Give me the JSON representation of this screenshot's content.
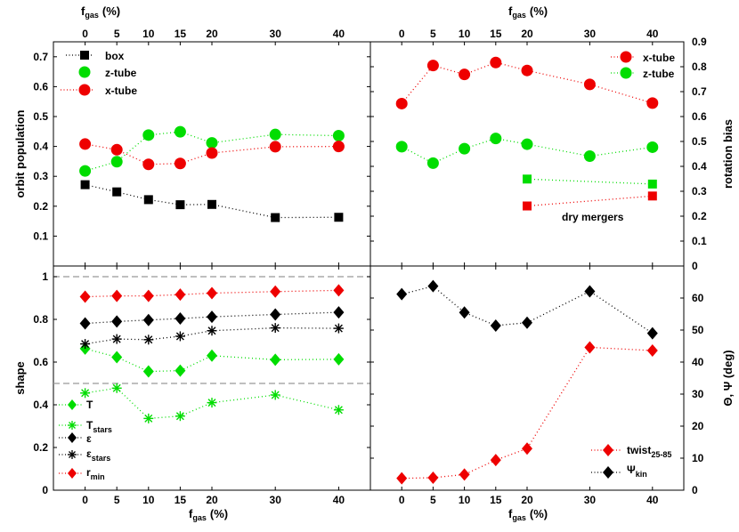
{
  "chart_data": [
    {
      "panel": "top-left",
      "type": "scatter",
      "top_xlabel": "f",
      "top_xlabel_sub": "gas",
      "top_xlabel_unit": "(%)",
      "x_ticks": [
        "0",
        "5",
        "10",
        "15",
        "20",
        "30",
        "40"
      ],
      "xlim": [
        -5,
        45
      ],
      "ylabel": "orbit population",
      "ylim": [
        0,
        0.75
      ],
      "y_ticks": [
        "0.1",
        "0.2",
        "0.3",
        "0.4",
        "0.5",
        "0.6",
        "0.7"
      ],
      "y_tick_values": [
        0.1,
        0.2,
        0.3,
        0.4,
        0.5,
        0.6,
        0.7
      ],
      "legend_position": "top-left",
      "series": [
        {
          "name": "box",
          "marker": "square",
          "color": "#000000",
          "x": [
            0,
            5,
            10,
            15,
            20,
            30,
            40
          ],
          "values": [
            0.272,
            0.248,
            0.222,
            0.205,
            0.206,
            0.162,
            0.163
          ]
        },
        {
          "name": "z-tube",
          "marker": "circle",
          "color": "#00dd00",
          "x": [
            0,
            5,
            10,
            15,
            20,
            30,
            40
          ],
          "values": [
            0.318,
            0.349,
            0.438,
            0.449,
            0.412,
            0.44,
            0.436
          ]
        },
        {
          "name": "x-tube",
          "marker": "circle",
          "color": "#ee0000",
          "x": [
            0,
            5,
            10,
            15,
            20,
            30,
            40
          ],
          "values": [
            0.408,
            0.389,
            0.34,
            0.343,
            0.378,
            0.399,
            0.4
          ]
        }
      ]
    },
    {
      "panel": "top-right",
      "type": "scatter",
      "top_xlabel": "f",
      "top_xlabel_sub": "gas",
      "top_xlabel_unit": "(%)",
      "x_ticks": [
        "0",
        "5",
        "10",
        "15",
        "20",
        "30",
        "40"
      ],
      "xlim": [
        -5,
        45
      ],
      "ylabel": "rotation bias",
      "ylim": [
        0,
        0.9
      ],
      "y_ticks": [
        "0",
        "0.1",
        "0.2",
        "0.3",
        "0.4",
        "0.5",
        "0.6",
        "0.7",
        "0.8",
        "0.9"
      ],
      "y_tick_values": [
        0,
        0.1,
        0.2,
        0.3,
        0.4,
        0.5,
        0.6,
        0.7,
        0.8,
        0.9
      ],
      "legend_position": "top-right",
      "annotation": "dry mergers",
      "series": [
        {
          "name": "x-tube",
          "marker": "circle",
          "color": "#ee0000",
          "x": [
            0,
            5,
            10,
            15,
            20,
            30,
            40
          ],
          "values": [
            0.652,
            0.805,
            0.769,
            0.817,
            0.785,
            0.729,
            0.654
          ]
        },
        {
          "name": "z-tube",
          "marker": "circle",
          "color": "#00dd00",
          "x": [
            0,
            5,
            10,
            15,
            20,
            30,
            40
          ],
          "values": [
            0.479,
            0.413,
            0.471,
            0.512,
            0.489,
            0.441,
            0.477
          ]
        },
        {
          "name": "z-tube dry mergers",
          "marker": "square",
          "color": "#00dd00",
          "x": [
            20,
            40
          ],
          "values": [
            0.349,
            0.329
          ]
        },
        {
          "name": "x-tube dry mergers",
          "marker": "square",
          "color": "#ee0000",
          "x": [
            20,
            40
          ],
          "values": [
            0.241,
            0.281
          ]
        }
      ]
    },
    {
      "panel": "bottom-left",
      "type": "scatter",
      "xlabel": "f",
      "xlabel_sub": "gas",
      "xlabel_unit": "(%)",
      "x_ticks": [
        "0",
        "5",
        "10",
        "15",
        "20",
        "30",
        "40"
      ],
      "xlim": [
        -5,
        45
      ],
      "ylabel": "shape",
      "ylim": [
        0,
        1.05
      ],
      "y_ticks": [
        "0",
        "0.2",
        "0.4",
        "0.6",
        "0.8",
        "1"
      ],
      "y_tick_values": [
        0,
        0.2,
        0.4,
        0.6,
        0.8,
        1.0
      ],
      "reference_lines": [
        1.0,
        0.5
      ],
      "legend_position": "bottom-left",
      "series": [
        {
          "name": "T",
          "marker": "diamond",
          "color": "#00dd00",
          "x": [
            0,
            5,
            10,
            15,
            20,
            30,
            40
          ],
          "values": [
            0.663,
            0.623,
            0.556,
            0.56,
            0.63,
            0.611,
            0.613
          ]
        },
        {
          "name": "T",
          "name_sub": "stars",
          "marker": "star",
          "color": "#00dd00",
          "x": [
            0,
            5,
            10,
            15,
            20,
            30,
            40
          ],
          "values": [
            0.455,
            0.478,
            0.336,
            0.347,
            0.41,
            0.446,
            0.376
          ]
        },
        {
          "name": "ε",
          "marker": "diamond",
          "color": "#000000",
          "x": [
            0,
            5,
            10,
            15,
            20,
            30,
            40
          ],
          "values": [
            0.781,
            0.79,
            0.797,
            0.804,
            0.812,
            0.823,
            0.833
          ]
        },
        {
          "name": "ε",
          "name_sub": "stars",
          "marker": "star",
          "color": "#000000",
          "x": [
            0,
            5,
            10,
            15,
            20,
            30,
            40
          ],
          "values": [
            0.685,
            0.708,
            0.705,
            0.721,
            0.747,
            0.76,
            0.758
          ]
        },
        {
          "name": "r",
          "name_sub": "min",
          "marker": "diamond",
          "color": "#ee0000",
          "x": [
            0,
            5,
            10,
            15,
            20,
            30,
            40
          ],
          "values": [
            0.906,
            0.91,
            0.91,
            0.916,
            0.923,
            0.93,
            0.936
          ]
        }
      ]
    },
    {
      "panel": "bottom-right",
      "type": "scatter",
      "xlabel": "f",
      "xlabel_sub": "gas",
      "xlabel_unit": "(%)",
      "x_ticks": [
        "0",
        "5",
        "10",
        "15",
        "20",
        "30",
        "40"
      ],
      "xlim": [
        -5,
        45
      ],
      "ylabel": "Θ, Ψ (deg)",
      "ylim": [
        0,
        70
      ],
      "y_ticks": [
        "0",
        "10",
        "20",
        "30",
        "40",
        "50",
        "60"
      ],
      "y_tick_values": [
        0,
        10,
        20,
        30,
        40,
        50,
        60
      ],
      "legend_position": "bottom-right",
      "series": [
        {
          "name": "twist",
          "name_sub": "25-85",
          "marker": "diamond",
          "color": "#ee0000",
          "x": [
            0,
            5,
            10,
            15,
            20,
            30,
            40
          ],
          "values": [
            3.7,
            3.9,
            4.9,
            9.4,
            13.0,
            44.6,
            43.6
          ]
        },
        {
          "name": "Ψ",
          "name_sub": "kin",
          "marker": "diamond",
          "color": "#000000",
          "x": [
            0,
            5,
            10,
            15,
            20,
            30,
            40
          ],
          "values": [
            61.2,
            63.7,
            55.5,
            51.4,
            52.3,
            62.1,
            49.0
          ]
        }
      ]
    }
  ]
}
